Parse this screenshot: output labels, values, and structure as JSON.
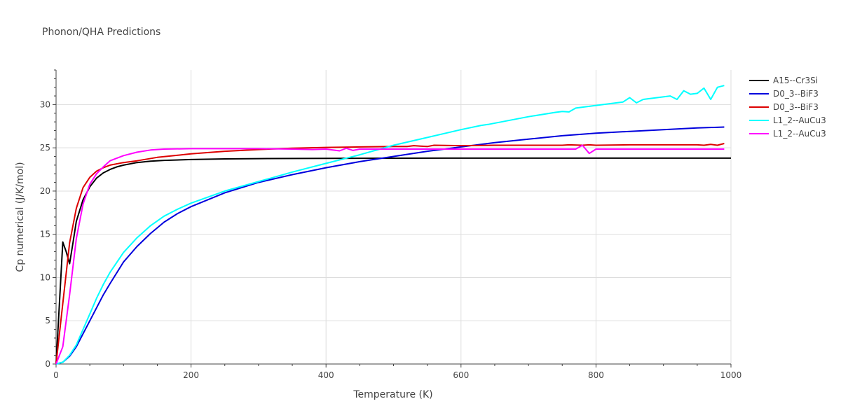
{
  "chart_data": {
    "type": "line",
    "title": "Phonon/QHA Predictions",
    "xlabel": "Temperature (K)",
    "ylabel": "Cp numerical (J/K/mol)",
    "xlim": [
      0,
      1000
    ],
    "ylim": [
      0,
      34
    ],
    "xticks": [
      0,
      200,
      400,
      600,
      800,
      1000
    ],
    "yticks": [
      0,
      5,
      10,
      15,
      20,
      25,
      30
    ],
    "grid": true,
    "legend_position": "top-right",
    "series": [
      {
        "name": "A15--Cr3Si",
        "color": "#000000",
        "x": [
          0,
          5,
          10,
          15,
          20,
          25,
          30,
          40,
          50,
          60,
          70,
          80,
          90,
          100,
          120,
          140,
          160,
          200,
          250,
          300,
          400,
          500,
          600,
          700,
          800,
          900,
          1000
        ],
        "y": [
          0,
          7,
          14.1,
          13,
          11.6,
          14,
          16.5,
          19,
          20.5,
          21.5,
          22.1,
          22.5,
          22.8,
          23.0,
          23.3,
          23.45,
          23.55,
          23.65,
          23.72,
          23.75,
          23.78,
          23.8,
          23.81,
          23.81,
          23.81,
          23.81,
          23.81
        ]
      },
      {
        "name": "D0_3--BiF3",
        "color": "#0000dd",
        "x": [
          0,
          10,
          20,
          30,
          40,
          50,
          60,
          70,
          80,
          100,
          120,
          140,
          160,
          180,
          200,
          250,
          300,
          350,
          400,
          450,
          500,
          550,
          600,
          650,
          700,
          750,
          800,
          850,
          900,
          950,
          990
        ],
        "y": [
          0,
          0.2,
          0.9,
          2,
          3.5,
          5,
          6.5,
          8,
          9.3,
          11.8,
          13.6,
          15.1,
          16.4,
          17.4,
          18.2,
          19.8,
          21.0,
          21.9,
          22.7,
          23.4,
          24.0,
          24.6,
          25.1,
          25.6,
          26.0,
          26.4,
          26.7,
          26.9,
          27.1,
          27.3,
          27.4
        ]
      },
      {
        "name": "D0_3--BiF3",
        "color": "#dd0000",
        "x": [
          0,
          10,
          20,
          30,
          40,
          50,
          60,
          70,
          80,
          100,
          120,
          150,
          200,
          250,
          300,
          350,
          400,
          450,
          500,
          520,
          530,
          540,
          550,
          560,
          600,
          650,
          700,
          750,
          760,
          780,
          790,
          800,
          850,
          900,
          950,
          960,
          970,
          980,
          990
        ],
        "y": [
          0,
          7,
          14,
          18,
          20.4,
          21.6,
          22.3,
          22.7,
          23.0,
          23.3,
          23.5,
          23.9,
          24.3,
          24.6,
          24.8,
          24.95,
          25.05,
          25.1,
          25.15,
          25.15,
          25.25,
          25.2,
          25.15,
          25.3,
          25.25,
          25.3,
          25.3,
          25.3,
          25.35,
          25.3,
          25.35,
          25.3,
          25.35,
          25.35,
          25.35,
          25.3,
          25.4,
          25.3,
          25.5
        ]
      },
      {
        "name": "L1_2--AuCu3",
        "color": "#00ffff",
        "x": [
          0,
          10,
          20,
          30,
          40,
          50,
          60,
          70,
          80,
          100,
          120,
          140,
          160,
          180,
          200,
          250,
          300,
          350,
          400,
          450,
          500,
          550,
          600,
          630,
          640,
          700,
          740,
          750,
          760,
          770,
          800,
          840,
          850,
          860,
          870,
          910,
          920,
          930,
          940,
          950,
          960,
          970,
          980,
          990
        ],
        "y": [
          0,
          0.2,
          1,
          2.2,
          4,
          5.8,
          7.6,
          9.2,
          10.6,
          12.9,
          14.6,
          16.0,
          17.1,
          17.9,
          18.6,
          20.0,
          21.1,
          22.2,
          23.2,
          24.2,
          25.3,
          26.2,
          27.1,
          27.6,
          27.7,
          28.6,
          29.1,
          29.2,
          29.15,
          29.6,
          29.9,
          30.3,
          30.8,
          30.2,
          30.6,
          31.0,
          30.6,
          31.6,
          31.2,
          31.3,
          31.9,
          30.6,
          32.0,
          32.2
        ]
      },
      {
        "name": "L1_2--AuCu3",
        "color": "#ff00ff",
        "x": [
          0,
          10,
          20,
          30,
          40,
          50,
          60,
          70,
          80,
          100,
          120,
          140,
          160,
          200,
          250,
          300,
          350,
          380,
          400,
          420,
          430,
          440,
          450,
          500,
          600,
          700,
          750,
          770,
          780,
          790,
          800,
          850,
          900,
          950,
          990
        ],
        "y": [
          0,
          2,
          8,
          14.5,
          18.5,
          20.8,
          22,
          22.8,
          23.5,
          24.1,
          24.5,
          24.75,
          24.85,
          24.9,
          24.9,
          24.9,
          24.85,
          24.8,
          24.85,
          24.65,
          24.95,
          24.7,
          24.85,
          24.85,
          24.85,
          24.85,
          24.85,
          24.85,
          25.3,
          24.35,
          24.85,
          24.85,
          24.85,
          24.85,
          24.85
        ]
      }
    ]
  }
}
